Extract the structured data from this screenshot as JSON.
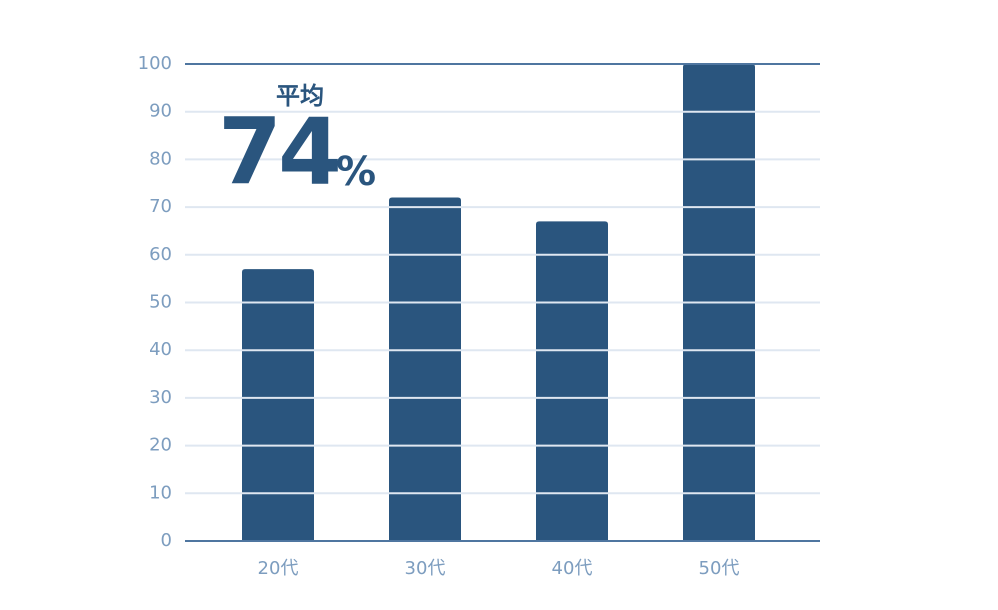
{
  "chart_data": {
    "type": "bar",
    "categories": [
      "20代",
      "30代",
      "40代",
      "50代"
    ],
    "values": [
      57,
      72,
      67,
      100
    ],
    "color": "#2a557e",
    "ylim": [
      0,
      100
    ],
    "yticks": [
      0,
      10,
      20,
      30,
      40,
      50,
      60,
      70,
      80,
      90,
      100
    ],
    "grid": true,
    "annotation": {
      "label": "平均",
      "value": 74,
      "unit": "%"
    }
  }
}
